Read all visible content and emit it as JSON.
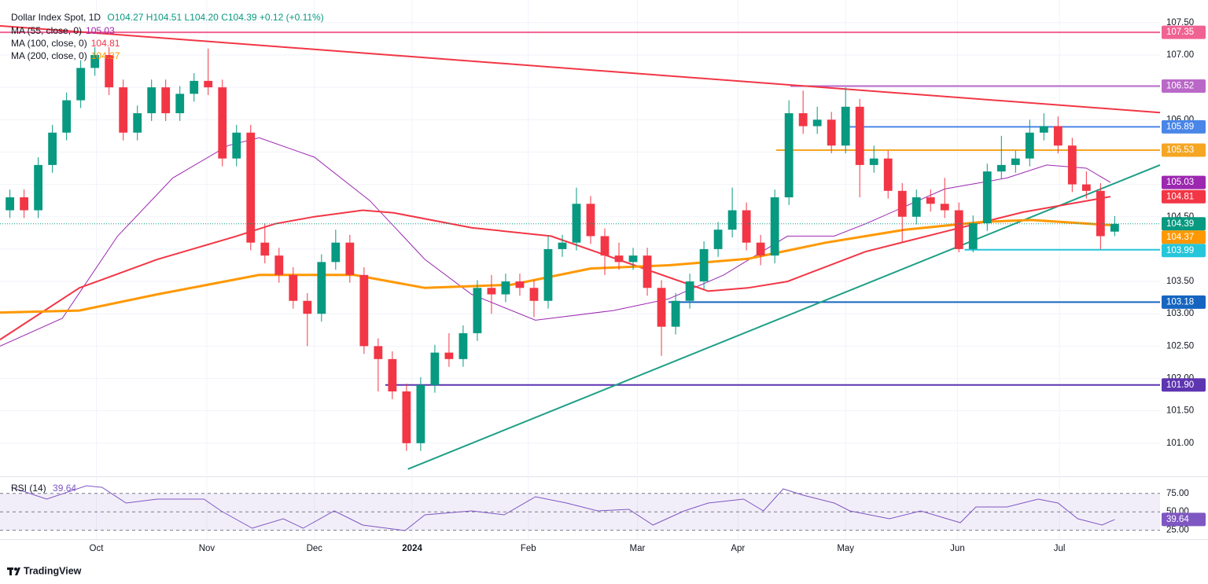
{
  "chart_data": [
    {
      "type": "candlestick",
      "title": "Dollar Index Spot, 1D",
      "ohlc_text": "O104.27 H104.51 L104.20 C104.39 +0.12 (+0.11%)",
      "up_color": "#089981",
      "down_color": "#f23645",
      "candles": [
        [
          104.6,
          104.92,
          104.48,
          104.8
        ],
        [
          104.8,
          104.92,
          104.48,
          104.6
        ],
        [
          104.6,
          105.42,
          104.48,
          105.3
        ],
        [
          105.3,
          105.92,
          105.18,
          105.8
        ],
        [
          105.8,
          106.42,
          105.68,
          106.3
        ],
        [
          106.3,
          106.92,
          106.18,
          106.8
        ],
        [
          106.8,
          107.12,
          106.68,
          107.0
        ],
        [
          107.0,
          107.12,
          106.38,
          106.5
        ],
        [
          106.5,
          106.62,
          105.68,
          105.8
        ],
        [
          105.8,
          106.22,
          105.68,
          106.1
        ],
        [
          106.1,
          106.62,
          105.98,
          106.5
        ],
        [
          106.5,
          106.62,
          105.98,
          106.1
        ],
        [
          106.1,
          106.52,
          105.98,
          106.4
        ],
        [
          106.4,
          106.72,
          106.28,
          106.6
        ],
        [
          106.6,
          107.1,
          106.38,
          106.5
        ],
        [
          106.5,
          106.62,
          105.28,
          105.4
        ],
        [
          105.4,
          105.92,
          105.28,
          105.8
        ],
        [
          105.8,
          105.92,
          103.98,
          104.1
        ],
        [
          104.1,
          104.4,
          103.78,
          103.9
        ],
        [
          103.9,
          104.02,
          103.48,
          103.6
        ],
        [
          103.6,
          103.72,
          103.08,
          103.2
        ],
        [
          103.2,
          103.32,
          102.5,
          103.0
        ],
        [
          103.0,
          103.92,
          102.88,
          103.8
        ],
        [
          103.8,
          104.3,
          103.68,
          104.1
        ],
        [
          104.1,
          104.22,
          103.48,
          103.6
        ],
        [
          103.6,
          103.72,
          102.38,
          102.5
        ],
        [
          102.5,
          102.62,
          101.8,
          102.3
        ],
        [
          102.3,
          102.42,
          101.68,
          101.8
        ],
        [
          101.8,
          101.92,
          100.88,
          101.0
        ],
        [
          101.0,
          102.02,
          100.88,
          101.9
        ],
        [
          101.9,
          102.52,
          101.78,
          102.4
        ],
        [
          102.4,
          102.7,
          102.18,
          102.3
        ],
        [
          102.3,
          102.82,
          102.18,
          102.7
        ],
        [
          102.7,
          103.52,
          102.58,
          103.4
        ],
        [
          103.4,
          103.6,
          103.0,
          103.3
        ],
        [
          103.3,
          103.62,
          103.18,
          103.5
        ],
        [
          103.5,
          103.62,
          103.28,
          103.4
        ],
        [
          103.4,
          103.52,
          102.95,
          103.2
        ],
        [
          103.2,
          104.2,
          103.08,
          104.0
        ],
        [
          104.0,
          104.22,
          103.88,
          104.1
        ],
        [
          104.1,
          104.95,
          103.98,
          104.7
        ],
        [
          104.7,
          104.82,
          104.08,
          104.2
        ],
        [
          104.2,
          104.32,
          103.6,
          103.9
        ],
        [
          103.9,
          104.1,
          103.68,
          103.8
        ],
        [
          103.8,
          104.02,
          103.68,
          103.9
        ],
        [
          103.9,
          104.02,
          103.28,
          103.4
        ],
        [
          103.4,
          103.52,
          102.35,
          102.8
        ],
        [
          102.8,
          103.32,
          102.68,
          103.2
        ],
        [
          103.2,
          103.62,
          103.08,
          103.5
        ],
        [
          103.5,
          104.12,
          103.38,
          104.0
        ],
        [
          104.0,
          104.42,
          103.88,
          104.3
        ],
        [
          104.3,
          104.95,
          104.18,
          104.6
        ],
        [
          104.6,
          104.72,
          103.98,
          104.1
        ],
        [
          104.1,
          104.22,
          103.75,
          103.9
        ],
        [
          103.9,
          104.92,
          103.78,
          104.8
        ],
        [
          104.8,
          106.3,
          104.68,
          106.1
        ],
        [
          106.1,
          106.45,
          105.78,
          105.9
        ],
        [
          105.9,
          106.2,
          105.78,
          106.0
        ],
        [
          106.0,
          106.12,
          105.48,
          105.6
        ],
        [
          105.6,
          106.5,
          105.48,
          106.2
        ],
        [
          106.2,
          106.32,
          104.8,
          105.3
        ],
        [
          105.3,
          105.6,
          105.18,
          105.4
        ],
        [
          105.4,
          105.52,
          104.78,
          104.9
        ],
        [
          104.9,
          105.02,
          104.1,
          104.5
        ],
        [
          104.5,
          104.92,
          104.38,
          104.8
        ],
        [
          104.8,
          104.92,
          104.58,
          104.7
        ],
        [
          104.7,
          105.1,
          104.48,
          104.6
        ],
        [
          104.6,
          104.72,
          103.95,
          104.0
        ],
        [
          104.0,
          104.52,
          103.95,
          104.4
        ],
        [
          104.4,
          105.32,
          104.28,
          105.2
        ],
        [
          105.2,
          105.75,
          105.08,
          105.3
        ],
        [
          105.3,
          105.52,
          105.18,
          105.4
        ],
        [
          105.4,
          106.0,
          105.28,
          105.8
        ],
        [
          105.8,
          106.1,
          105.68,
          105.9
        ],
        [
          105.9,
          106.05,
          105.48,
          105.6
        ],
        [
          105.6,
          105.72,
          104.88,
          105.0
        ],
        [
          105.0,
          105.2,
          104.78,
          104.9
        ],
        [
          104.9,
          105.02,
          104.0,
          104.2
        ],
        [
          104.27,
          104.51,
          104.2,
          104.39
        ]
      ],
      "xlim": [
        -0.7,
        81.2
      ],
      "xticks": [
        {
          "value": 6.1,
          "label": "Oct"
        },
        {
          "value": 13.9,
          "label": "Nov"
        },
        {
          "value": 21.5,
          "label": "Dec"
        },
        {
          "value": 28.4,
          "label": "2024",
          "bold": true
        },
        {
          "value": 36.6,
          "label": "Feb"
        },
        {
          "value": 44.3,
          "label": "Mar"
        },
        {
          "value": 51.4,
          "label": "Apr"
        },
        {
          "value": 59.0,
          "label": "May"
        },
        {
          "value": 66.9,
          "label": "Jun"
        },
        {
          "value": 74.1,
          "label": "Jul"
        }
      ],
      "ylim": [
        100.5,
        107.85
      ],
      "yticks": [
        {
          "value": 101,
          "label": "101.00"
        },
        {
          "value": 101.5,
          "label": "101.50"
        },
        {
          "value": 102,
          "label": "102.00"
        },
        {
          "value": 102.5,
          "label": "102.50"
        },
        {
          "value": 103,
          "label": "103.00"
        },
        {
          "value": 103.5,
          "label": "103.50"
        },
        {
          "value": 104,
          "label": "104.00"
        },
        {
          "value": 104.5,
          "label": "104.50"
        },
        {
          "value": 105,
          "label": "105.00"
        },
        {
          "value": 105.5,
          "label": "105.50"
        },
        {
          "value": 106,
          "label": "106.00"
        },
        {
          "value": 106.5,
          "label": "106.50"
        },
        {
          "value": 107,
          "label": "107.00"
        },
        {
          "value": 107.5,
          "label": "107.50"
        }
      ],
      "grid": true,
      "last_price": {
        "value": 104.39,
        "color": "#089981"
      },
      "moving_averages": [
        {
          "name": "MA (55, close, 0)",
          "value": 105.03,
          "color": "#9c27b0",
          "width": 1,
          "x": [
            -0.7,
            3.7,
            7.6,
            11.5,
            15.4,
            17.6,
            21.5,
            25.4,
            29.3,
            32.6,
            37.1,
            42.6,
            46.5,
            50.4,
            54.9,
            58.2,
            60.4,
            66.0,
            70.4,
            73.2,
            76.0,
            77.7
          ],
          "values": [
            102.5,
            102.93,
            104.2,
            105.1,
            105.6,
            105.72,
            105.42,
            104.75,
            103.84,
            103.3,
            102.9,
            103.05,
            103.23,
            103.6,
            104.2,
            104.2,
            104.39,
            104.93,
            105.1,
            105.3,
            105.25,
            105.03
          ]
        },
        {
          "name": "MA (100, close, 0)",
          "value": 104.81,
          "color": "#f23645",
          "width": 2,
          "x": [
            -0.7,
            4.9,
            10.4,
            16.0,
            18.7,
            21.5,
            24.9,
            27.1,
            32.6,
            38.2,
            43.7,
            49.3,
            52.1,
            54.9,
            60.4,
            66.0,
            71.5,
            77.7
          ],
          "values": [
            102.6,
            103.4,
            103.84,
            104.2,
            104.39,
            104.5,
            104.6,
            104.56,
            104.33,
            104.2,
            103.78,
            103.35,
            103.4,
            103.5,
            103.96,
            104.27,
            104.57,
            104.81
          ]
        },
        {
          "name": "MA (200, close, 0)",
          "value": 104.37,
          "color": "#ff9800",
          "width": 3,
          "x": [
            -0.7,
            4.9,
            10.4,
            17.6,
            24.3,
            29.3,
            35.4,
            41.0,
            46.5,
            52.1,
            57.6,
            63.2,
            68.7,
            72.1,
            77.7
          ],
          "values": [
            103.02,
            103.05,
            103.3,
            103.6,
            103.6,
            103.4,
            103.45,
            103.7,
            103.75,
            103.85,
            104.1,
            104.3,
            104.42,
            104.45,
            104.37
          ]
        }
      ],
      "levels": [
        {
          "value": 107.35,
          "label": "107.35",
          "color": "#f06292",
          "start": -0.7
        },
        {
          "value": 106.52,
          "label": "106.52",
          "color": "#ba68c8",
          "start": 55.1
        },
        {
          "value": 105.89,
          "label": "105.89",
          "color": "#4a86e8",
          "start": 59.3
        },
        {
          "value": 105.53,
          "label": "105.53",
          "color": "#f5a623",
          "start": 54.1
        },
        {
          "value": 103.99,
          "label": "103.99",
          "color": "#26c6da",
          "start": 67.4
        },
        {
          "value": 103.18,
          "label": "103.18",
          "color": "#1565c0",
          "start": 46.5
        },
        {
          "value": 101.9,
          "label": "101.90",
          "color": "#5e35b1",
          "start": 26.5
        }
      ],
      "trendlines": [
        {
          "color": "#f23645",
          "x": [
            -0.7,
            81.2
          ],
          "values": [
            107.45,
            106.11
          ]
        },
        {
          "color": "#1e9e86",
          "x": [
            28.1,
            81.2
          ],
          "values": [
            100.6,
            105.3
          ]
        }
      ]
    },
    {
      "type": "line",
      "title": "RSI (14)",
      "value": 39.64,
      "color": "#7e57c2",
      "xlim": [
        -0.7,
        81.2
      ],
      "ylim": [
        14,
        96
      ],
      "yticks": [
        {
          "value": 25,
          "label": "25.00"
        },
        {
          "value": 50,
          "label": "50.00"
        },
        {
          "value": 75,
          "label": "75.00"
        }
      ],
      "x": [
        0.1,
        2.6,
        5.4,
        6.5,
        8.2,
        10.4,
        13.7,
        14.9,
        17.1,
        19.3,
        20.7,
        22.9,
        24.9,
        27.9,
        29.3,
        32.6,
        34.9,
        37.1,
        39.3,
        41.5,
        43.7,
        45.4,
        47.6,
        49.3,
        51.8,
        53.2,
        54.6,
        56.0,
        58.2,
        59.3,
        62.1,
        64.3,
        67.1,
        68.2,
        70.4,
        72.6,
        74.0,
        75.4,
        77.1,
        78
      ],
      "values": [
        83.2,
        67.2,
        85.4,
        83.2,
        61.9,
        67.2,
        67.2,
        51.3,
        27.8,
        40.6,
        27.8,
        51.3,
        32.1,
        24.6,
        46.0,
        51.3,
        46.0,
        70.4,
        61.9,
        51.3,
        53.4,
        32.1,
        51.3,
        61.9,
        67.2,
        51.3,
        81.1,
        72.6,
        61.9,
        51.3,
        40.6,
        51.3,
        35.3,
        56.6,
        56.6,
        67.2,
        61.9,
        40.6,
        32.1,
        39.64
      ]
    }
  ],
  "footer": {
    "brand": "TradingView"
  }
}
